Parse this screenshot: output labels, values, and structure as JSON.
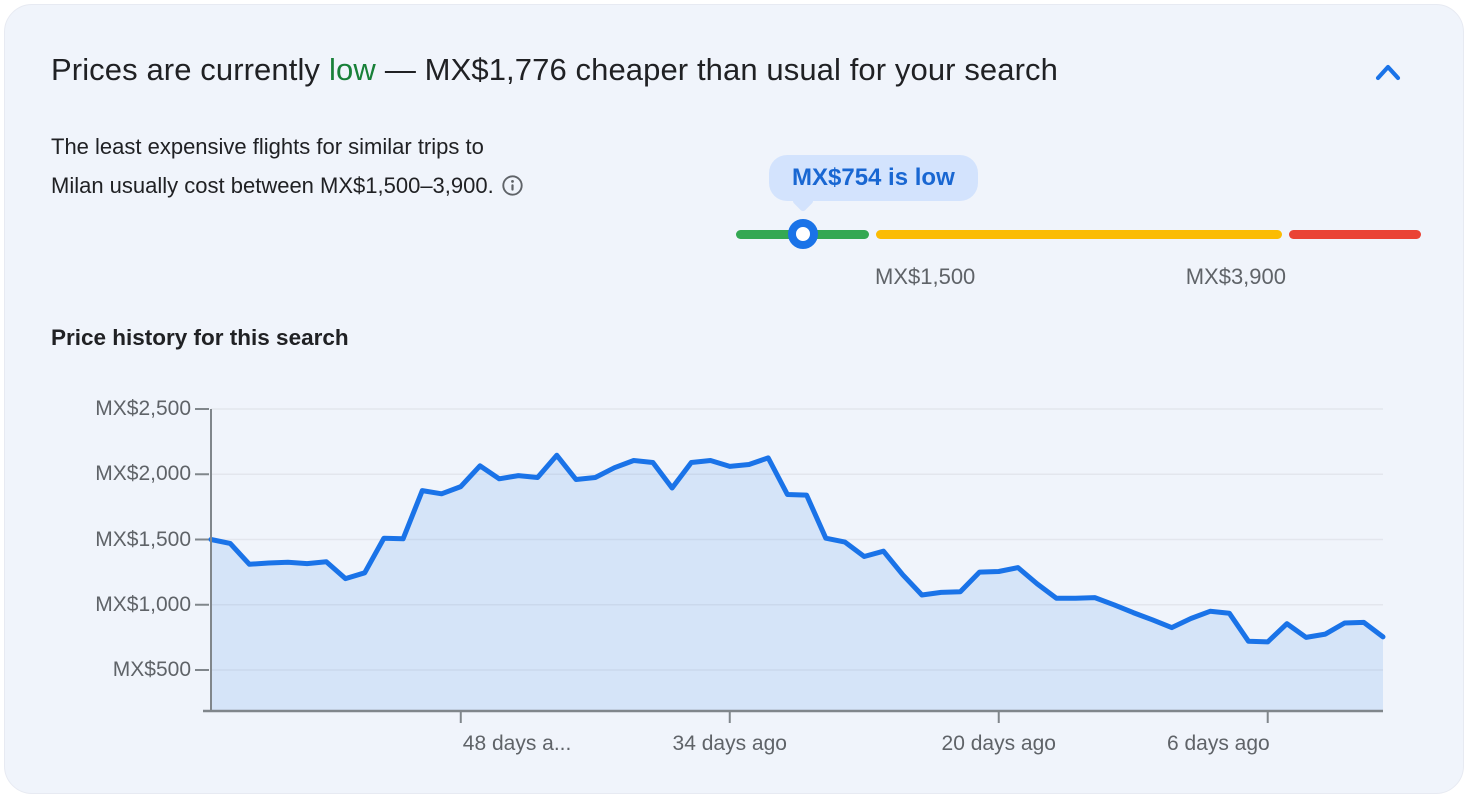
{
  "header": {
    "prefix": "Prices are currently",
    "status": "low",
    "suffix": "— MX$1,776 cheaper than usual for your search",
    "status_color": "#188038",
    "accent_color": "#1a73e8"
  },
  "summary": {
    "text": "The least expensive flights for similar trips to Milan usually cost between MX$1,500–3,900.",
    "info_icon": "info-circle"
  },
  "price_gauge": {
    "tooltip": "MX$754 is low",
    "current_price": 754,
    "low_threshold": 1500,
    "high_threshold": 3900,
    "low_threshold_label": "MX$1,500",
    "high_threshold_label": "MX$3,900",
    "segment_colors": {
      "low": "#34a853",
      "typical": "#fbbc04",
      "high": "#ea4335"
    },
    "marker_ring_color": "#1a73e8",
    "tooltip_bg": "#d3e3fd",
    "tooltip_text_color": "#1967d2"
  },
  "chart_section": {
    "title": "Price history for this search"
  },
  "chart_data": {
    "type": "area",
    "title": "Price history for this search",
    "x_unit": "days_ago",
    "x_range_days": [
      61,
      0
    ],
    "grid": true,
    "legend": false,
    "line_color": "#1a73e8",
    "fill_color": "rgba(26,115,232,0.12)",
    "ylim": [
      180,
      2595
    ],
    "y_ticks": [
      {
        "value": 2500,
        "label": "MX$2,500"
      },
      {
        "value": 2000,
        "label": "MX$2,000"
      },
      {
        "value": 1500,
        "label": "MX$1,500"
      },
      {
        "value": 1000,
        "label": "MX$1,000"
      },
      {
        "value": 500,
        "label": "MX$500"
      }
    ],
    "x_ticks": [
      {
        "days_ago": 48,
        "label": "48 days a...",
        "align": "left"
      },
      {
        "days_ago": 34,
        "label": "34 days ago",
        "align": "center"
      },
      {
        "days_ago": 20,
        "label": "20 days ago",
        "align": "center"
      },
      {
        "days_ago": 6,
        "label": "6 days ago",
        "align": "right"
      }
    ],
    "series": [
      {
        "name": "price_mxn",
        "days_ago": [
          61,
          60,
          59,
          58,
          57,
          56,
          55,
          54,
          53,
          52,
          51,
          50,
          49,
          48,
          47,
          46,
          45,
          44,
          43,
          42,
          41,
          40,
          39,
          38,
          37,
          36,
          35,
          34,
          33,
          32,
          31,
          30,
          29,
          28,
          27,
          26,
          25,
          24,
          23,
          22,
          21,
          20,
          19,
          18,
          17,
          16,
          15,
          14,
          13,
          12,
          11,
          10,
          9,
          8,
          7,
          6,
          5,
          4,
          3,
          2,
          1,
          0
        ],
        "values": [
          1500,
          1470,
          1310,
          1320,
          1325,
          1315,
          1330,
          1200,
          1245,
          1510,
          1505,
          1875,
          1850,
          1905,
          2065,
          1965,
          1990,
          1975,
          2145,
          1960,
          1975,
          2050,
          2105,
          2090,
          1895,
          2090,
          2105,
          2060,
          2075,
          2125,
          1845,
          1840,
          1510,
          1480,
          1370,
          1410,
          1230,
          1075,
          1095,
          1100,
          1250,
          1255,
          1285,
          1160,
          1050,
          1050,
          1055,
          1000,
          940,
          885,
          825,
          895,
          950,
          935,
          720,
          715,
          855,
          750,
          775,
          860,
          865,
          754
        ]
      }
    ]
  }
}
